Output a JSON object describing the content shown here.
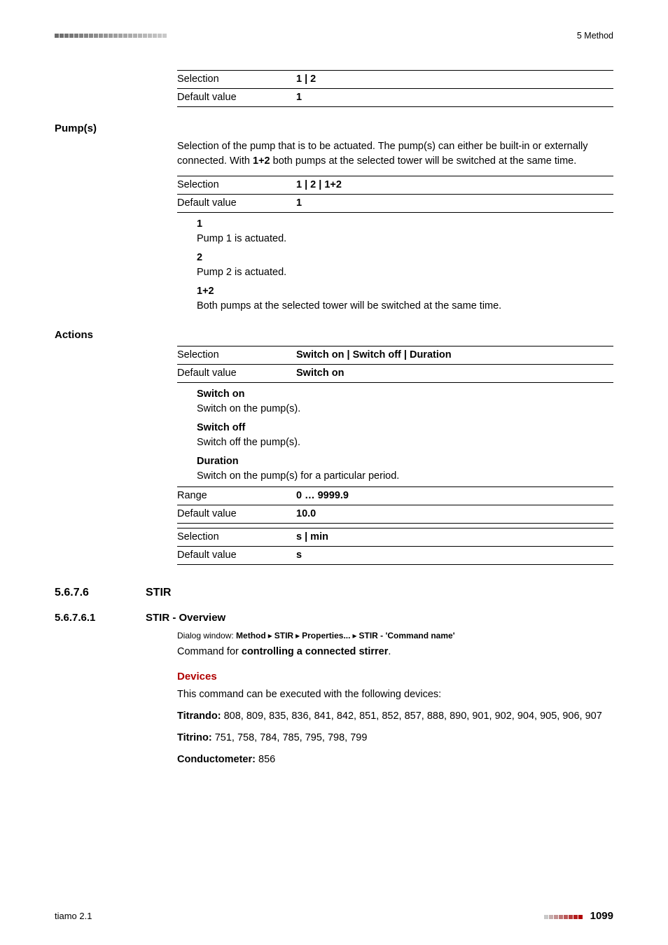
{
  "colors": {
    "text": "#000000",
    "accent_red": "#b00000",
    "rule": "#000000",
    "dot_dark": "#6a6a6a",
    "dot_light": "#c9c9c9",
    "dot_red": "#b00000",
    "bg": "#ffffff"
  },
  "top": {
    "section_label": "5 Method",
    "dot_count": 23
  },
  "first_table": {
    "rows": [
      {
        "key": "Selection",
        "val": "1 | 2"
      },
      {
        "key": "Default value",
        "val": "1"
      }
    ]
  },
  "pumps": {
    "label": "Pump(s)",
    "desc": "Selection of the pump that is to be actuated. The pump(s) can either be built-in or externally connected. With 1+2 both pumps at the selected tower will be switched at the same time.",
    "bold_inline": "1+2",
    "table": {
      "rows": [
        {
          "key": "Selection",
          "val": "1 | 2 | 1+2"
        },
        {
          "key": "Default value",
          "val": "1"
        }
      ]
    },
    "defs": [
      {
        "term": "1",
        "desc": "Pump 1 is actuated."
      },
      {
        "term": "2",
        "desc": "Pump 2 is actuated."
      },
      {
        "term": "1+2",
        "desc": "Both pumps at the selected tower will be switched at the same time."
      }
    ]
  },
  "actions": {
    "label": "Actions",
    "table1": {
      "rows": [
        {
          "key": "Selection",
          "val": "Switch on | Switch off | Duration"
        },
        {
          "key": "Default value",
          "val": "Switch on"
        }
      ]
    },
    "defs": [
      {
        "term": "Switch on",
        "desc": "Switch on the pump(s)."
      },
      {
        "term": "Switch off",
        "desc": "Switch off the pump(s)."
      },
      {
        "term": "Duration",
        "desc": "Switch on the pump(s) for a particular period."
      }
    ],
    "table2": {
      "rows": [
        {
          "key": "Range",
          "val": "0 … 9999.9"
        },
        {
          "key": "Default value",
          "val": "10.0"
        }
      ]
    },
    "table3": {
      "rows": [
        {
          "key": "Selection",
          "val": "s | min"
        },
        {
          "key": "Default value",
          "val": "s"
        }
      ]
    }
  },
  "h1": {
    "num": "5.6.7.6",
    "title": "STIR"
  },
  "h2": {
    "num": "5.6.7.6.1",
    "title": "STIR - Overview",
    "path_prefix": "Dialog window: ",
    "path_parts": [
      "Method",
      "STIR",
      "Properties...",
      "STIR - 'Command name'"
    ],
    "cmd_prefix": "Command for ",
    "cmd_bold": "controlling a connected stirrer",
    "cmd_suffix": "."
  },
  "devices": {
    "heading": "Devices",
    "intro": "This command can be executed with the following devices:",
    "lines": [
      {
        "label": "Titrando:",
        "text": " 808, 809, 835, 836, 841, 842, 851, 852, 857, 888, 890, 901, 902, 904, 905, 906, 907"
      },
      {
        "label": "Titrino:",
        "text": " 751, 758, 784, 785, 795, 798, 799"
      },
      {
        "label": "Conductometer:",
        "text": " 856"
      }
    ]
  },
  "footer": {
    "left": "tiamo 2.1",
    "page": "1099",
    "dot_count": 8
  }
}
